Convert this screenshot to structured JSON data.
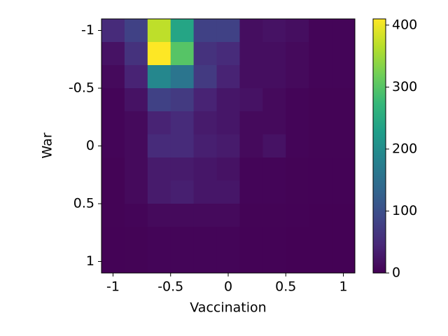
{
  "chart_data": {
    "type": "heatmap",
    "colormap": "viridis",
    "xlabel": "Vaccination",
    "ylabel": "War",
    "xbins": [
      -1.1,
      -0.9,
      -0.7,
      -0.5,
      -0.3,
      -0.1,
      0.1,
      0.3,
      0.5,
      0.7,
      0.9,
      1.1
    ],
    "ybins": [
      -1.1,
      -0.9,
      -0.7,
      -0.5,
      -0.3,
      -0.1,
      0.1,
      0.3,
      0.5,
      0.7,
      0.9,
      1.1
    ],
    "values": [
      [
        50,
        80,
        370,
        240,
        80,
        80,
        15,
        20,
        15,
        5,
        5
      ],
      [
        20,
        60,
        410,
        300,
        60,
        50,
        15,
        15,
        10,
        5,
        5
      ],
      [
        10,
        40,
        190,
        160,
        70,
        40,
        15,
        15,
        10,
        5,
        5
      ],
      [
        5,
        20,
        80,
        70,
        40,
        25,
        20,
        10,
        5,
        3,
        3
      ],
      [
        5,
        10,
        40,
        50,
        30,
        25,
        10,
        10,
        5,
        3,
        3
      ],
      [
        5,
        10,
        50,
        50,
        35,
        30,
        10,
        20,
        5,
        3,
        3
      ],
      [
        3,
        10,
        30,
        30,
        25,
        20,
        5,
        5,
        3,
        2,
        2
      ],
      [
        3,
        10,
        30,
        35,
        25,
        25,
        5,
        5,
        3,
        2,
        2
      ],
      [
        3,
        5,
        10,
        10,
        10,
        10,
        3,
        3,
        2,
        1,
        1
      ],
      [
        2,
        3,
        5,
        5,
        5,
        5,
        2,
        2,
        1,
        1,
        1
      ],
      [
        2,
        3,
        5,
        5,
        5,
        5,
        2,
        2,
        1,
        1,
        1
      ]
    ],
    "xlim": [
      -1.1,
      1.1
    ],
    "ylim": [
      1.1,
      -1.1
    ],
    "xticks": [
      -1,
      -0.5,
      0,
      0.5,
      1
    ],
    "yticks": [
      -1,
      -0.5,
      0,
      0.5,
      1
    ],
    "clim": [
      0,
      410
    ],
    "cticks": [
      0,
      100,
      200,
      300,
      400
    ]
  }
}
